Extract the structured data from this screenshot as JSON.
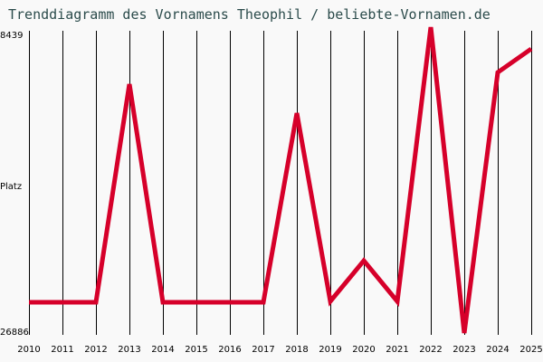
{
  "title": "Trenddiagramm des Vornamens Theophil / beliebte-Vornamen.de",
  "y_axis": {
    "label": "Platz",
    "top_label": "8439",
    "bottom_label": "26886"
  },
  "colors": {
    "line": "#d6002a",
    "grid": "#000000",
    "title": "#2b4b4b",
    "background": "#f9f9f9"
  },
  "chart_data": {
    "type": "line",
    "title": "Trenddiagramm des Vornamens Theophil / beliebte-Vornamen.de",
    "xlabel": "",
    "ylabel": "Platz",
    "categories": [
      "2010",
      "2011",
      "2012",
      "2013",
      "2014",
      "2015",
      "2016",
      "2017",
      "2018",
      "2019",
      "2020",
      "2021",
      "2022",
      "2023",
      "2024",
      "2025"
    ],
    "series": [
      {
        "name": "Theophil",
        "values": [
          24974,
          24974,
          24974,
          11420,
          24974,
          24974,
          24974,
          24974,
          13220,
          24918,
          22387,
          24918,
          7877,
          26886,
          10689,
          9226
        ]
      }
    ],
    "ylim": [
      26886,
      8439
    ],
    "y_inverted": true,
    "grid": {
      "vertical": true,
      "horizontal": false
    },
    "legend": "none"
  }
}
